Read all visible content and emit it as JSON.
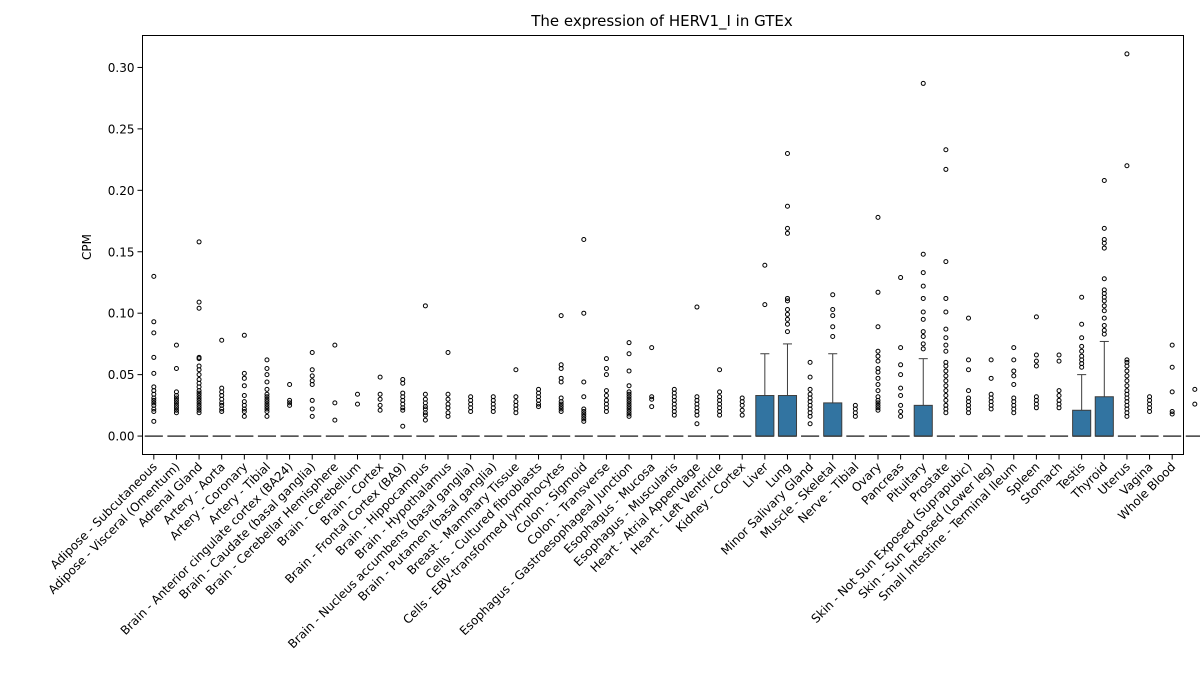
{
  "chart_data": {
    "type": "box",
    "title": "The expression of HERV1_I in GTEx",
    "xlabel": "",
    "ylabel": "CPM",
    "ylim": [
      -0.015,
      0.326
    ],
    "yticks": [
      0.0,
      0.05,
      0.1,
      0.15,
      0.2,
      0.25,
      0.3
    ],
    "ytick_labels": [
      "0.00",
      "0.05",
      "0.10",
      "0.15",
      "0.20",
      "0.25",
      "0.30"
    ],
    "box_color": "#3274a1",
    "grid": false,
    "legend": "none",
    "categories": [
      "Adipose - Subcutaneous",
      "Adipose - Visceral (Omentum)",
      "Adrenal Gland",
      "Artery - Aorta",
      "Artery - Coronary",
      "Artery - Tibial",
      "Brain - Anterior cingulate cortex (BA24)",
      "Brain - Caudate (basal ganglia)",
      "Brain - Cerebellar Hemisphere",
      "Brain - Cerebellum",
      "Brain - Cortex",
      "Brain - Frontal Cortex (BA9)",
      "Brain - Hippocampus",
      "Brain - Hypothalamus",
      "Brain - Nucleus accumbens (basal ganglia)",
      "Brain - Putamen (basal ganglia)",
      "Breast - Mammary Tissue",
      "Cells - Cultured fibroblasts",
      "Cells - EBV-transformed lymphocytes",
      "Colon - Sigmoid",
      "Colon - Transverse",
      "Esophagus - Gastroesophageal Junction",
      "Esophagus - Mucosa",
      "Esophagus - Muscularis",
      "Heart - Atrial Appendage",
      "Heart - Left Ventricle",
      "Kidney - Cortex",
      "Liver",
      "Lung",
      "Minor Salivary Gland",
      "Muscle - Skeletal",
      "Nerve - Tibial",
      "Ovary",
      "Pancreas",
      "Pituitary",
      "Prostate",
      "Skin - Not Sun Exposed (Suprapubic)",
      "Skin - Sun Exposed (Lower leg)",
      "Small Intestine - Terminal Ileum",
      "Spleen",
      "Stomach",
      "Testis",
      "Thyroid",
      "Uterus",
      "Vagina",
      "Whole Blood"
    ],
    "boxes": [
      {
        "q1": 0,
        "median": 0,
        "q3": 0,
        "whisker_low": 0,
        "whisker_high": 0,
        "fliers": [
          0.13,
          0.093,
          0.084,
          0.064,
          0.051,
          0.04,
          0.037,
          0.034,
          0.031,
          0.029,
          0.027,
          0.025,
          0.022,
          0.02,
          0.012
        ]
      },
      {
        "q1": 0,
        "median": 0,
        "q3": 0,
        "whisker_low": 0,
        "whisker_high": 0,
        "fliers": [
          0.074,
          0.055,
          0.036,
          0.033,
          0.031,
          0.029,
          0.027,
          0.025,
          0.023,
          0.021,
          0.019
        ]
      },
      {
        "q1": 0,
        "median": 0,
        "q3": 0,
        "whisker_low": 0,
        "whisker_high": 0,
        "fliers": [
          0.158,
          0.109,
          0.104,
          0.064,
          0.063,
          0.057,
          0.054,
          0.05,
          0.046,
          0.043,
          0.04,
          0.037,
          0.035,
          0.033,
          0.031,
          0.029,
          0.027,
          0.025,
          0.023,
          0.021,
          0.019
        ]
      },
      {
        "q1": 0,
        "median": 0,
        "q3": 0,
        "whisker_low": 0,
        "whisker_high": 0,
        "fliers": [
          0.078,
          0.039,
          0.036,
          0.033,
          0.03,
          0.027,
          0.025,
          0.022,
          0.02
        ]
      },
      {
        "q1": 0,
        "median": 0,
        "q3": 0,
        "whisker_low": 0,
        "whisker_high": 0,
        "fliers": [
          0.082,
          0.051,
          0.047,
          0.041,
          0.033,
          0.028,
          0.025,
          0.022,
          0.02,
          0.016
        ]
      },
      {
        "q1": 0,
        "median": 0,
        "q3": 0,
        "whisker_low": 0,
        "whisker_high": 0,
        "fliers": [
          0.062,
          0.055,
          0.05,
          0.044,
          0.038,
          0.034,
          0.032,
          0.03,
          0.028,
          0.026,
          0.024,
          0.022,
          0.02,
          0.016
        ]
      },
      {
        "q1": 0,
        "median": 0,
        "q3": 0,
        "whisker_low": 0,
        "whisker_high": 0,
        "fliers": [
          0.042,
          0.029,
          0.027,
          0.025
        ]
      },
      {
        "q1": 0,
        "median": 0,
        "q3": 0,
        "whisker_low": 0,
        "whisker_high": 0,
        "fliers": [
          0.068,
          0.054,
          0.049,
          0.045,
          0.042,
          0.029,
          0.022,
          0.016
        ]
      },
      {
        "q1": 0,
        "median": 0,
        "q3": 0,
        "whisker_low": 0,
        "whisker_high": 0,
        "fliers": [
          0.074,
          0.027,
          0.013
        ]
      },
      {
        "q1": 0,
        "median": 0,
        "q3": 0,
        "whisker_low": 0,
        "whisker_high": 0,
        "fliers": [
          0.034,
          0.026
        ]
      },
      {
        "q1": 0,
        "median": 0,
        "q3": 0,
        "whisker_low": 0,
        "whisker_high": 0,
        "fliers": [
          0.048,
          0.034,
          0.03,
          0.025,
          0.021
        ]
      },
      {
        "q1": 0,
        "median": 0,
        "q3": 0,
        "whisker_low": 0,
        "whisker_high": 0,
        "fliers": [
          0.046,
          0.043,
          0.035,
          0.032,
          0.029,
          0.026,
          0.023,
          0.021,
          0.008
        ]
      },
      {
        "q1": 0,
        "median": 0,
        "q3": 0,
        "whisker_low": 0,
        "whisker_high": 0,
        "fliers": [
          0.106,
          0.034,
          0.03,
          0.027,
          0.024,
          0.022,
          0.019,
          0.017,
          0.013
        ]
      },
      {
        "q1": 0,
        "median": 0,
        "q3": 0,
        "whisker_low": 0,
        "whisker_high": 0,
        "fliers": [
          0.068,
          0.034,
          0.03,
          0.026,
          0.023,
          0.019,
          0.016
        ]
      },
      {
        "q1": 0,
        "median": 0,
        "q3": 0,
        "whisker_low": 0,
        "whisker_high": 0,
        "fliers": [
          0.032,
          0.029,
          0.026,
          0.023,
          0.02
        ]
      },
      {
        "q1": 0,
        "median": 0,
        "q3": 0,
        "whisker_low": 0,
        "whisker_high": 0,
        "fliers": [
          0.032,
          0.029,
          0.026,
          0.023,
          0.02
        ]
      },
      {
        "q1": 0,
        "median": 0,
        "q3": 0,
        "whisker_low": 0,
        "whisker_high": 0,
        "fliers": [
          0.054,
          0.032,
          0.028,
          0.025,
          0.022,
          0.019
        ]
      },
      {
        "q1": 0,
        "median": 0,
        "q3": 0,
        "whisker_low": 0,
        "whisker_high": 0,
        "fliers": [
          0.038,
          0.035,
          0.032,
          0.029,
          0.026,
          0.024
        ]
      },
      {
        "q1": 0,
        "median": 0,
        "q3": 0,
        "whisker_low": 0,
        "whisker_high": 0,
        "fliers": [
          0.098,
          0.058,
          0.055,
          0.047,
          0.044,
          0.031,
          0.028,
          0.026,
          0.024,
          0.022,
          0.02
        ]
      },
      {
        "q1": 0,
        "median": 0,
        "q3": 0,
        "whisker_low": 0,
        "whisker_high": 0,
        "fliers": [
          0.16,
          0.1,
          0.044,
          0.032,
          0.022,
          0.02,
          0.018,
          0.016,
          0.014,
          0.012
        ]
      },
      {
        "q1": 0,
        "median": 0,
        "q3": 0,
        "whisker_low": 0,
        "whisker_high": 0,
        "fliers": [
          0.063,
          0.055,
          0.05,
          0.037,
          0.033,
          0.029,
          0.026,
          0.023,
          0.02
        ]
      },
      {
        "q1": 0,
        "median": 0,
        "q3": 0,
        "whisker_low": 0,
        "whisker_high": 0,
        "fliers": [
          0.076,
          0.067,
          0.053,
          0.041,
          0.036,
          0.034,
          0.032,
          0.03,
          0.028,
          0.026,
          0.024,
          0.022,
          0.02,
          0.018,
          0.016
        ]
      },
      {
        "q1": 0,
        "median": 0,
        "q3": 0,
        "whisker_low": 0,
        "whisker_high": 0,
        "fliers": [
          0.072,
          0.032,
          0.03,
          0.024
        ]
      },
      {
        "q1": 0,
        "median": 0,
        "q3": 0,
        "whisker_low": 0,
        "whisker_high": 0,
        "fliers": [
          0.038,
          0.035,
          0.032,
          0.029,
          0.026,
          0.023,
          0.02,
          0.017
        ]
      },
      {
        "q1": 0,
        "median": 0,
        "q3": 0,
        "whisker_low": 0,
        "whisker_high": 0,
        "fliers": [
          0.105,
          0.032,
          0.029,
          0.026,
          0.023,
          0.02,
          0.017,
          0.01
        ]
      },
      {
        "q1": 0,
        "median": 0,
        "q3": 0,
        "whisker_low": 0,
        "whisker_high": 0,
        "fliers": [
          0.054,
          0.036,
          0.032,
          0.029,
          0.026,
          0.023,
          0.02,
          0.017
        ]
      },
      {
        "q1": 0,
        "median": 0,
        "q3": 0,
        "whisker_low": 0,
        "whisker_high": 0,
        "fliers": [
          0.031,
          0.028,
          0.025,
          0.021,
          0.017
        ]
      },
      {
        "q1": 0,
        "median": 0,
        "q3": 0.033,
        "whisker_low": 0,
        "whisker_high": 0.067,
        "fliers": [
          0.139,
          0.107
        ]
      },
      {
        "q1": 0,
        "median": 0,
        "q3": 0.033,
        "whisker_low": 0,
        "whisker_high": 0.075,
        "fliers": [
          0.23,
          0.187,
          0.169,
          0.165,
          0.112,
          0.11,
          0.103,
          0.099,
          0.095,
          0.091,
          0.085
        ]
      },
      {
        "q1": 0,
        "median": 0,
        "q3": 0,
        "whisker_low": 0,
        "whisker_high": 0,
        "fliers": [
          0.06,
          0.048,
          0.038,
          0.034,
          0.031,
          0.028,
          0.025,
          0.022,
          0.019,
          0.016,
          0.01
        ]
      },
      {
        "q1": 0,
        "median": 0,
        "q3": 0.027,
        "whisker_low": 0,
        "whisker_high": 0.067,
        "fliers": [
          0.115,
          0.103,
          0.098,
          0.089,
          0.081
        ]
      },
      {
        "q1": 0,
        "median": 0,
        "q3": 0,
        "whisker_low": 0,
        "whisker_high": 0,
        "fliers": [
          0.025,
          0.022,
          0.019,
          0.016
        ]
      },
      {
        "q1": 0,
        "median": 0,
        "q3": 0,
        "whisker_low": 0,
        "whisker_high": 0,
        "fliers": [
          0.178,
          0.117,
          0.089,
          0.069,
          0.065,
          0.061,
          0.055,
          0.052,
          0.047,
          0.042,
          0.037,
          0.032,
          0.029,
          0.027,
          0.025,
          0.023,
          0.021
        ]
      },
      {
        "q1": 0,
        "median": 0,
        "q3": 0,
        "whisker_low": 0,
        "whisker_high": 0,
        "fliers": [
          0.129,
          0.072,
          0.058,
          0.05,
          0.039,
          0.033,
          0.025,
          0.02,
          0.016
        ]
      },
      {
        "q1": 0,
        "median": 0,
        "q3": 0.025,
        "whisker_low": 0,
        "whisker_high": 0.063,
        "fliers": [
          0.287,
          0.148,
          0.133,
          0.122,
          0.112,
          0.101,
          0.095,
          0.085,
          0.081,
          0.075,
          0.071
        ]
      },
      {
        "q1": 0,
        "median": 0,
        "q3": 0,
        "whisker_low": 0,
        "whisker_high": 0,
        "fliers": [
          0.233,
          0.217,
          0.142,
          0.112,
          0.101,
          0.087,
          0.08,
          0.074,
          0.069,
          0.06,
          0.057,
          0.053,
          0.049,
          0.045,
          0.041,
          0.037,
          0.033,
          0.029,
          0.025,
          0.022,
          0.019
        ]
      },
      {
        "q1": 0,
        "median": 0,
        "q3": 0,
        "whisker_low": 0,
        "whisker_high": 0,
        "fliers": [
          0.096,
          0.062,
          0.054,
          0.037,
          0.031,
          0.028,
          0.025,
          0.022,
          0.019
        ]
      },
      {
        "q1": 0,
        "median": 0,
        "q3": 0,
        "whisker_low": 0,
        "whisker_high": 0,
        "fliers": [
          0.062,
          0.047,
          0.034,
          0.031,
          0.028,
          0.025,
          0.022
        ]
      },
      {
        "q1": 0,
        "median": 0,
        "q3": 0,
        "whisker_low": 0,
        "whisker_high": 0,
        "fliers": [
          0.072,
          0.062,
          0.053,
          0.049,
          0.042,
          0.031,
          0.028,
          0.025,
          0.022,
          0.019
        ]
      },
      {
        "q1": 0,
        "median": 0,
        "q3": 0,
        "whisker_low": 0,
        "whisker_high": 0,
        "fliers": [
          0.097,
          0.066,
          0.061,
          0.057,
          0.032,
          0.029,
          0.026,
          0.023
        ]
      },
      {
        "q1": 0,
        "median": 0,
        "q3": 0,
        "whisker_low": 0,
        "whisker_high": 0,
        "fliers": [
          0.066,
          0.061,
          0.037,
          0.033,
          0.029,
          0.026,
          0.023
        ]
      },
      {
        "q1": 0,
        "median": 0,
        "q3": 0.021,
        "whisker_low": 0,
        "whisker_high": 0.05,
        "fliers": [
          0.113,
          0.091,
          0.08,
          0.073,
          0.069,
          0.065,
          0.062,
          0.059,
          0.056
        ]
      },
      {
        "q1": 0,
        "median": 0,
        "q3": 0.032,
        "whisker_low": 0,
        "whisker_high": 0.077,
        "fliers": [
          0.208,
          0.169,
          0.16,
          0.157,
          0.153,
          0.128,
          0.119,
          0.116,
          0.113,
          0.11,
          0.106,
          0.102,
          0.096,
          0.09,
          0.086,
          0.083
        ]
      },
      {
        "q1": 0,
        "median": 0,
        "q3": 0,
        "whisker_low": 0,
        "whisker_high": 0,
        "fliers": [
          0.311,
          0.22,
          0.062,
          0.06,
          0.057,
          0.053,
          0.049,
          0.045,
          0.041,
          0.037,
          0.034,
          0.031,
          0.028,
          0.025,
          0.022,
          0.019,
          0.016
        ]
      },
      {
        "q1": 0,
        "median": 0,
        "q3": 0,
        "whisker_low": 0,
        "whisker_high": 0,
        "fliers": [
          0.032,
          0.029,
          0.026,
          0.023,
          0.02
        ]
      },
      {
        "q1": 0,
        "median": 0,
        "q3": 0,
        "whisker_low": 0,
        "whisker_high": 0,
        "fliers": [
          0.074,
          0.056,
          0.036,
          0.02,
          0.018
        ]
      },
      {
        "q1": 0,
        "median": 0,
        "q3": 0,
        "whisker_low": 0,
        "whisker_high": 0,
        "fliers": [
          0.038,
          0.026
        ]
      }
    ]
  }
}
